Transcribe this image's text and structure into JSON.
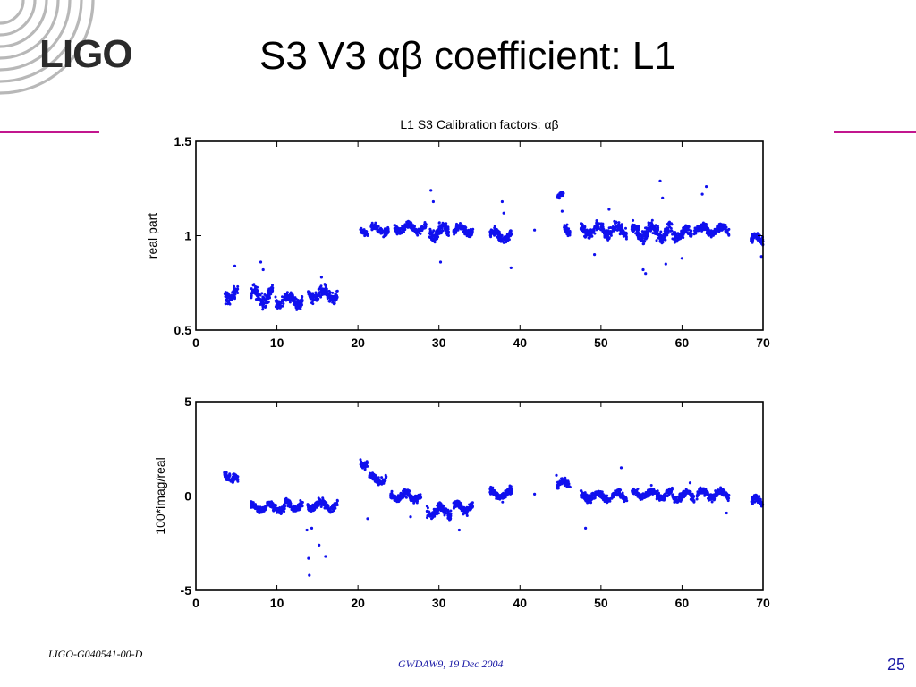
{
  "slide": {
    "logo": "LIGO",
    "title": "S3 V3 αβ coefficient: L1",
    "doc_id": "LIGO-G040541-00-D",
    "footer": "GWDAW9, 19 Dec 2004",
    "page_number": "25",
    "accent_color": "#c2168e",
    "logo_color": "#2b2b2b",
    "footer_color": "#1a1aa6"
  },
  "chart_data": [
    {
      "type": "scatter",
      "title": "L1 S3 Calibration factors: αβ",
      "xlabel": "",
      "ylabel": "real part",
      "xlim": [
        0,
        70
      ],
      "ylim": [
        0.5,
        1.5
      ],
      "xticks": [
        0,
        10,
        20,
        30,
        40,
        50,
        60,
        70
      ],
      "yticks": [
        0.5,
        1,
        1.5
      ],
      "ytick_labels": [
        "0.5",
        "1",
        "1.5"
      ],
      "grid": false,
      "marker_color": "#1010ee",
      "segments": [
        {
          "x0": 3.5,
          "x1": 5.2,
          "y": 0.69,
          "spread": 0.05
        },
        {
          "x0": 6.8,
          "x1": 9.5,
          "y": 0.68,
          "spread": 0.05
        },
        {
          "x0": 9.8,
          "x1": 13.2,
          "y": 0.66,
          "spread": 0.04
        },
        {
          "x0": 13.8,
          "x1": 17.5,
          "y": 0.69,
          "spread": 0.04
        },
        {
          "x0": 20.3,
          "x1": 21.3,
          "y": 1.02,
          "spread": 0.02
        },
        {
          "x0": 21.6,
          "x1": 23.8,
          "y": 1.03,
          "spread": 0.03
        },
        {
          "x0": 24.5,
          "x1": 28.5,
          "y": 1.04,
          "spread": 0.03
        },
        {
          "x0": 28.8,
          "x1": 31.2,
          "y": 1.02,
          "spread": 0.05
        },
        {
          "x0": 31.8,
          "x1": 34.2,
          "y": 1.03,
          "spread": 0.03
        },
        {
          "x0": 36.3,
          "x1": 39.0,
          "y": 1.0,
          "spread": 0.04
        },
        {
          "x0": 44.6,
          "x1": 45.4,
          "y": 1.22,
          "spread": 0.02
        },
        {
          "x0": 45.4,
          "x1": 46.2,
          "y": 1.02,
          "spread": 0.04
        },
        {
          "x0": 47.5,
          "x1": 53.2,
          "y": 1.03,
          "spread": 0.04
        },
        {
          "x0": 53.8,
          "x1": 58.8,
          "y": 1.02,
          "spread": 0.05
        },
        {
          "x0": 58.8,
          "x1": 61.2,
          "y": 1.01,
          "spread": 0.04
        },
        {
          "x0": 61.5,
          "x1": 65.8,
          "y": 1.03,
          "spread": 0.03
        },
        {
          "x0": 68.5,
          "x1": 70.0,
          "y": 0.98,
          "spread": 0.03
        }
      ],
      "outliers": [
        {
          "x": 4.8,
          "y": 0.84
        },
        {
          "x": 8.0,
          "y": 0.86
        },
        {
          "x": 8.3,
          "y": 0.82
        },
        {
          "x": 15.5,
          "y": 0.78
        },
        {
          "x": 29.0,
          "y": 1.24
        },
        {
          "x": 29.3,
          "y": 1.18
        },
        {
          "x": 30.2,
          "y": 0.86
        },
        {
          "x": 37.8,
          "y": 1.18
        },
        {
          "x": 38.0,
          "y": 1.12
        },
        {
          "x": 38.9,
          "y": 0.83
        },
        {
          "x": 41.8,
          "y": 1.03
        },
        {
          "x": 45.2,
          "y": 1.13
        },
        {
          "x": 49.2,
          "y": 0.9
        },
        {
          "x": 55.2,
          "y": 0.82
        },
        {
          "x": 55.5,
          "y": 0.8
        },
        {
          "x": 57.3,
          "y": 1.29
        },
        {
          "x": 57.6,
          "y": 1.2
        },
        {
          "x": 58.0,
          "y": 0.85
        },
        {
          "x": 57.0,
          "y": 1.05
        },
        {
          "x": 62.5,
          "y": 1.22
        },
        {
          "x": 63.0,
          "y": 1.26
        },
        {
          "x": 69.8,
          "y": 0.89
        },
        {
          "x": 60.0,
          "y": 0.88
        },
        {
          "x": 51.0,
          "y": 1.14
        }
      ]
    },
    {
      "type": "scatter",
      "title": "",
      "xlabel": "",
      "ylabel": "100*imag/real",
      "xlim": [
        0,
        70
      ],
      "ylim": [
        -5,
        5
      ],
      "xticks": [
        0,
        10,
        20,
        30,
        40,
        50,
        60,
        70
      ],
      "yticks": [
        -5,
        0,
        5
      ],
      "ytick_labels": [
        "-5",
        "0",
        "5"
      ],
      "grid": false,
      "marker_color": "#1010ee",
      "segments": [
        {
          "x0": 3.5,
          "x1": 4.2,
          "y": 1.2,
          "spread": 0.3
        },
        {
          "x0": 4.3,
          "x1": 5.2,
          "y": 0.8,
          "spread": 0.3
        },
        {
          "x0": 6.8,
          "x1": 11.0,
          "y": -0.6,
          "spread": 0.3
        },
        {
          "x0": 11.0,
          "x1": 13.2,
          "y": -0.5,
          "spread": 0.3
        },
        {
          "x0": 13.8,
          "x1": 17.5,
          "y": -0.5,
          "spread": 0.3
        },
        {
          "x0": 20.3,
          "x1": 21.2,
          "y": 1.8,
          "spread": 0.3
        },
        {
          "x0": 21.4,
          "x1": 23.5,
          "y": 0.9,
          "spread": 0.3
        },
        {
          "x0": 24.0,
          "x1": 27.8,
          "y": 0.0,
          "spread": 0.3
        },
        {
          "x0": 28.5,
          "x1": 31.5,
          "y": -0.8,
          "spread": 0.35
        },
        {
          "x0": 31.8,
          "x1": 34.2,
          "y": -0.6,
          "spread": 0.3
        },
        {
          "x0": 36.3,
          "x1": 39.0,
          "y": 0.1,
          "spread": 0.3
        },
        {
          "x0": 44.6,
          "x1": 46.2,
          "y": 0.6,
          "spread": 0.3
        },
        {
          "x0": 47.5,
          "x1": 53.2,
          "y": 0.0,
          "spread": 0.3
        },
        {
          "x0": 53.8,
          "x1": 58.8,
          "y": 0.1,
          "spread": 0.3
        },
        {
          "x0": 58.8,
          "x1": 61.5,
          "y": 0.0,
          "spread": 0.3
        },
        {
          "x0": 61.8,
          "x1": 65.8,
          "y": 0.1,
          "spread": 0.3
        },
        {
          "x0": 68.5,
          "x1": 70.0,
          "y": -0.3,
          "spread": 0.3
        }
      ],
      "outliers": [
        {
          "x": 14.0,
          "y": -4.2
        },
        {
          "x": 13.9,
          "y": -3.3
        },
        {
          "x": 13.7,
          "y": -1.8
        },
        {
          "x": 16.0,
          "y": -3.2
        },
        {
          "x": 15.2,
          "y": -2.6
        },
        {
          "x": 14.3,
          "y": -1.7
        },
        {
          "x": 21.2,
          "y": -1.2
        },
        {
          "x": 26.5,
          "y": -1.1
        },
        {
          "x": 32.5,
          "y": -1.8
        },
        {
          "x": 41.8,
          "y": 0.1
        },
        {
          "x": 48.1,
          "y": -1.7
        },
        {
          "x": 52.5,
          "y": 1.5
        },
        {
          "x": 61.0,
          "y": 0.7
        },
        {
          "x": 65.5,
          "y": -0.9
        },
        {
          "x": 44.5,
          "y": 1.1
        }
      ]
    }
  ]
}
